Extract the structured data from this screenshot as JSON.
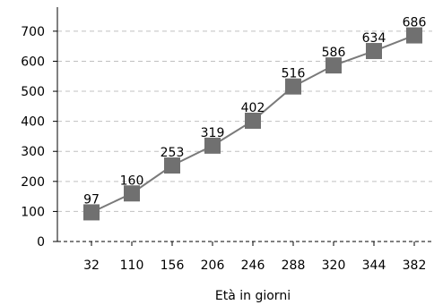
{
  "chart_data": {
    "type": "line",
    "title": "",
    "xlabel": "Età in giorni",
    "ylabel": "",
    "categories": [
      "32",
      "110",
      "156",
      "206",
      "246",
      "288",
      "320",
      "344",
      "382"
    ],
    "values": [
      97,
      160,
      253,
      319,
      402,
      516,
      586,
      634,
      686
    ],
    "data_labels": [
      "97",
      "160",
      "253",
      "319",
      "402",
      "516",
      "586",
      "634",
      "686"
    ],
    "y_ticks": [
      "0",
      "100",
      "200",
      "300",
      "400",
      "500",
      "600",
      "700"
    ],
    "ylim": [
      0,
      780
    ],
    "grid": "horizontal dashed",
    "marker": "square",
    "colors": {
      "line": "#7a7a7a",
      "marker": "#707070",
      "grid": "#c0c0c0",
      "axis": "#000000"
    }
  }
}
